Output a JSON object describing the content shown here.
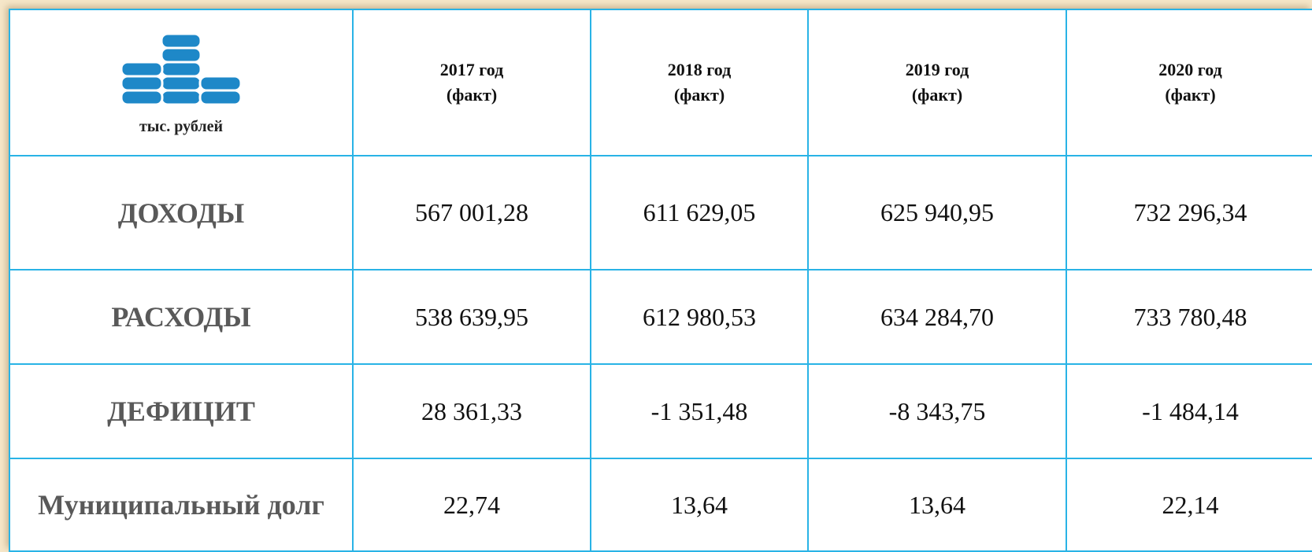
{
  "header": {
    "unit": "тыс. рублей",
    "columns": [
      {
        "year": "2017 год",
        "note": "(факт)"
      },
      {
        "year": "2018 год",
        "note": "(факт)"
      },
      {
        "year": "2019 год",
        "note": "(факт)"
      },
      {
        "year": "2020 год",
        "note": "(факт)"
      }
    ]
  },
  "table": {
    "rows": [
      {
        "label": "ДОХОДЫ",
        "values": [
          "567 001,28",
          "611 629,05",
          "625 940,95",
          "732 296,34"
        ]
      },
      {
        "label": "РАСХОДЫ",
        "values": [
          "538 639,95",
          "612 980,53",
          "634 284,70",
          "733 780,48"
        ]
      },
      {
        "label": "ДЕФИЦИТ",
        "values": [
          "28 361,33",
          "-1 351,48",
          "-8 343,75",
          "-1 484,14"
        ]
      },
      {
        "label": "Муниципальный долг",
        "values": [
          "22,74",
          "13,64",
          "13,64",
          "22,14"
        ]
      }
    ]
  }
}
